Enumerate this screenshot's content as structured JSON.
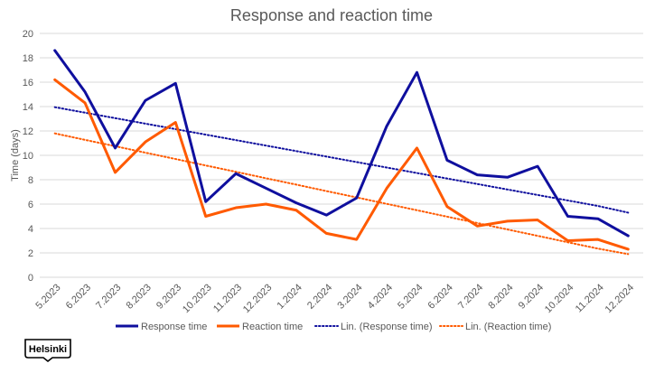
{
  "chart_data": {
    "type": "line",
    "title": "Response and reaction time",
    "ylabel": "Time (days)",
    "xlabel": "",
    "ylim": [
      0,
      20
    ],
    "yticks": [
      0,
      2,
      4,
      6,
      8,
      10,
      12,
      14,
      16,
      18,
      20
    ],
    "grid": true,
    "legend_position": "bottom",
    "categories": [
      "5.2023",
      "6.2023",
      "7.2023",
      "8.2023",
      "9.2023",
      "10.2023",
      "11.2023",
      "12.2023",
      "1.2024",
      "2.2024",
      "3.2024",
      "4.2024",
      "5.2024",
      "6.2024",
      "7.2024",
      "8.2024",
      "9.2024",
      "10.2024",
      "11.2024",
      "12.2024"
    ],
    "series": [
      {
        "name": "Response time",
        "color": "#0f0f9e",
        "style": "solid",
        "values": [
          18.6,
          15.2,
          10.6,
          14.5,
          15.9,
          6.2,
          8.5,
          7.3,
          6.1,
          5.1,
          6.5,
          12.4,
          16.8,
          9.6,
          8.4,
          8.2,
          9.1,
          5.0,
          4.8,
          3.4
        ]
      },
      {
        "name": "Reaction time",
        "color": "#ff5a00",
        "style": "solid",
        "values": [
          16.2,
          14.3,
          8.6,
          11.1,
          12.7,
          5.0,
          5.7,
          6.0,
          5.5,
          3.6,
          3.1,
          7.3,
          10.6,
          5.8,
          4.2,
          4.6,
          4.7,
          3.0,
          3.1,
          2.3
        ]
      },
      {
        "name": "Lin. (Response time)",
        "color": "#0f0f9e",
        "style": "dotted",
        "values": [
          13.95,
          13.5,
          13.05,
          12.6,
          12.15,
          11.7,
          11.25,
          10.8,
          10.35,
          9.9,
          9.45,
          9.0,
          8.55,
          8.1,
          7.65,
          7.2,
          6.75,
          6.3,
          5.85,
          5.3
        ]
      },
      {
        "name": "Lin. (Reaction time)",
        "color": "#ff5a00",
        "style": "dotted",
        "values": [
          11.8,
          11.27,
          10.75,
          10.22,
          9.7,
          9.17,
          8.65,
          8.12,
          7.6,
          7.07,
          6.55,
          6.02,
          5.5,
          4.97,
          4.45,
          3.92,
          3.4,
          2.87,
          2.35,
          1.9
        ]
      }
    ]
  },
  "logo": {
    "text": "Helsinki",
    "color": "#000000"
  },
  "colors": {
    "gridline": "#d9d9d9",
    "axis_text": "#595959"
  }
}
